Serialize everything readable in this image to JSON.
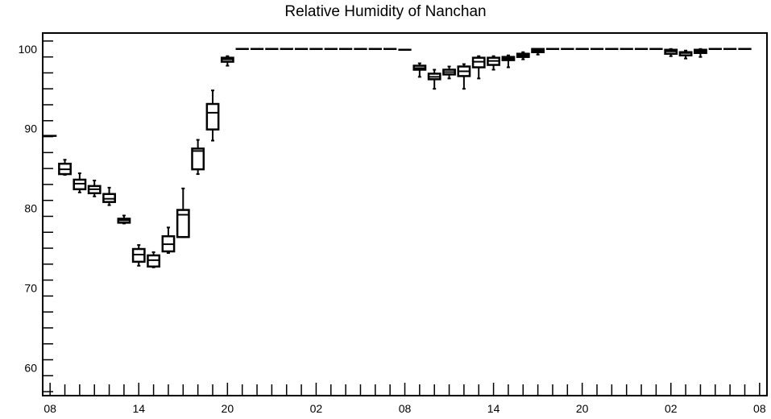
{
  "chart_data": {
    "type": "box",
    "title": "Relative Humidity of Nanchan",
    "xlabel": "",
    "ylabel": "",
    "ylim": [
      56.5,
      102
    ],
    "xlim": [
      -0.5,
      48.5
    ],
    "y_ticks": [
      60,
      70,
      80,
      90,
      100
    ],
    "x_ticks": [
      {
        "x": 0,
        "label": "08"
      },
      {
        "x": 6,
        "label": "14"
      },
      {
        "x": 12,
        "label": "20"
      },
      {
        "x": 18,
        "label": "02"
      },
      {
        "x": 24,
        "label": "08"
      },
      {
        "x": 30,
        "label": "14"
      },
      {
        "x": 36,
        "label": "20"
      },
      {
        "x": 42,
        "label": "02"
      },
      {
        "x": 48,
        "label": "08"
      }
    ],
    "hour_ticks_every": 1,
    "grid": false,
    "boxes": [
      {
        "x": 0,
        "min": 89.1,
        "q1": 89.1,
        "median": 89.1,
        "q3": 89.1,
        "max": 89.1
      },
      {
        "x": 1,
        "min": 84.2,
        "q1": 84.3,
        "median": 84.9,
        "q3": 85.6,
        "max": 86.1
      },
      {
        "x": 2,
        "min": 82.0,
        "q1": 82.4,
        "median": 83.1,
        "q3": 83.6,
        "max": 84.4
      },
      {
        "x": 3,
        "min": 81.5,
        "q1": 81.9,
        "median": 82.4,
        "q3": 82.8,
        "max": 83.5
      },
      {
        "x": 4,
        "min": 80.4,
        "q1": 80.8,
        "median": 81.2,
        "q3": 81.8,
        "max": 82.6
      },
      {
        "x": 5,
        "min": 78.1,
        "q1": 78.2,
        "median": 78.5,
        "q3": 78.7,
        "max": 79.1
      },
      {
        "x": 6,
        "min": 72.8,
        "q1": 73.3,
        "median": 74.2,
        "q3": 74.9,
        "max": 75.4
      },
      {
        "x": 7,
        "min": 72.6,
        "q1": 72.7,
        "median": 73.5,
        "q3": 74.1,
        "max": 74.5
      },
      {
        "x": 8,
        "min": 74.4,
        "q1": 74.6,
        "median": 75.5,
        "q3": 76.5,
        "max": 77.6
      },
      {
        "x": 9,
        "min": 76.4,
        "q1": 76.4,
        "median": 79.2,
        "q3": 79.8,
        "max": 82.5
      },
      {
        "x": 10,
        "min": 84.3,
        "q1": 84.9,
        "median": 87.2,
        "q3": 87.5,
        "max": 88.6
      },
      {
        "x": 11,
        "min": 88.5,
        "q1": 89.9,
        "median": 92.0,
        "q3": 93.1,
        "max": 94.8
      },
      {
        "x": 12,
        "min": 97.9,
        "q1": 98.4,
        "median": 98.7,
        "q3": 98.9,
        "max": 99.1
      },
      {
        "x": 13,
        "min": 100,
        "q1": 100,
        "median": 100,
        "q3": 100,
        "max": 100
      },
      {
        "x": 14,
        "min": 100,
        "q1": 100,
        "median": 100,
        "q3": 100,
        "max": 100
      },
      {
        "x": 15,
        "min": 100,
        "q1": 100,
        "median": 100,
        "q3": 100,
        "max": 100
      },
      {
        "x": 16,
        "min": 100,
        "q1": 100,
        "median": 100,
        "q3": 100,
        "max": 100
      },
      {
        "x": 17,
        "min": 100,
        "q1": 100,
        "median": 100,
        "q3": 100,
        "max": 100
      },
      {
        "x": 18,
        "min": 100,
        "q1": 100,
        "median": 100,
        "q3": 100,
        "max": 100
      },
      {
        "x": 19,
        "min": 100,
        "q1": 100,
        "median": 100,
        "q3": 100,
        "max": 100
      },
      {
        "x": 20,
        "min": 100,
        "q1": 100,
        "median": 100,
        "q3": 100,
        "max": 100
      },
      {
        "x": 21,
        "min": 100,
        "q1": 100,
        "median": 100,
        "q3": 100,
        "max": 100
      },
      {
        "x": 22,
        "min": 100,
        "q1": 100,
        "median": 100,
        "q3": 100,
        "max": 100
      },
      {
        "x": 23,
        "min": 100,
        "q1": 100,
        "median": 100,
        "q3": 100,
        "max": 100
      },
      {
        "x": 24,
        "min": 99.8,
        "q1": 99.8,
        "median": 99.9,
        "q3": 100,
        "max": 100
      },
      {
        "x": 25,
        "min": 96.5,
        "q1": 97.4,
        "median": 97.6,
        "q3": 97.9,
        "max": 98.2
      },
      {
        "x": 26,
        "min": 95.0,
        "q1": 96.2,
        "median": 96.5,
        "q3": 96.9,
        "max": 97.4
      },
      {
        "x": 27,
        "min": 96.3,
        "q1": 96.8,
        "median": 97.1,
        "q3": 97.4,
        "max": 97.8
      },
      {
        "x": 28,
        "min": 95.0,
        "q1": 96.6,
        "median": 97.2,
        "q3": 97.8,
        "max": 98.1
      },
      {
        "x": 29,
        "min": 96.3,
        "q1": 97.7,
        "median": 98.4,
        "q3": 98.9,
        "max": 99.1
      },
      {
        "x": 30,
        "min": 97.4,
        "q1": 98.0,
        "median": 98.5,
        "q3": 98.9,
        "max": 99.1
      },
      {
        "x": 31,
        "min": 97.7,
        "q1": 98.6,
        "median": 98.8,
        "q3": 99.0,
        "max": 99.2
      },
      {
        "x": 32,
        "min": 98.7,
        "q1": 99.0,
        "median": 99.2,
        "q3": 99.4,
        "max": 99.6
      },
      {
        "x": 33,
        "min": 99.3,
        "q1": 99.6,
        "median": 99.8,
        "q3": 100,
        "max": 100
      },
      {
        "x": 34,
        "min": 100,
        "q1": 100,
        "median": 100,
        "q3": 100,
        "max": 100
      },
      {
        "x": 35,
        "min": 100,
        "q1": 100,
        "median": 100,
        "q3": 100,
        "max": 100
      },
      {
        "x": 36,
        "min": 100,
        "q1": 100,
        "median": 100,
        "q3": 100,
        "max": 100
      },
      {
        "x": 37,
        "min": 100,
        "q1": 100,
        "median": 100,
        "q3": 100,
        "max": 100
      },
      {
        "x": 38,
        "min": 100,
        "q1": 100,
        "median": 100,
        "q3": 100,
        "max": 100
      },
      {
        "x": 39,
        "min": 100,
        "q1": 100,
        "median": 100,
        "q3": 100,
        "max": 100
      },
      {
        "x": 40,
        "min": 99.9,
        "q1": 99.9,
        "median": 100,
        "q3": 100,
        "max": 100
      },
      {
        "x": 41,
        "min": 100,
        "q1": 100,
        "median": 100,
        "q3": 100,
        "max": 100
      },
      {
        "x": 42,
        "min": 99.1,
        "q1": 99.4,
        "median": 99.7,
        "q3": 99.9,
        "max": 100
      },
      {
        "x": 43,
        "min": 98.8,
        "q1": 99.2,
        "median": 99.5,
        "q3": 99.6,
        "max": 99.8
      },
      {
        "x": 44,
        "min": 99.0,
        "q1": 99.5,
        "median": 99.7,
        "q3": 99.9,
        "max": 100
      },
      {
        "x": 45,
        "min": 100,
        "q1": 100,
        "median": 100,
        "q3": 100,
        "max": 100
      },
      {
        "x": 46,
        "min": 100,
        "q1": 100,
        "median": 100,
        "q3": 100,
        "max": 100
      },
      {
        "x": 47,
        "min": 100,
        "q1": 100,
        "median": 100,
        "q3": 100,
        "max": 100
      }
    ]
  }
}
